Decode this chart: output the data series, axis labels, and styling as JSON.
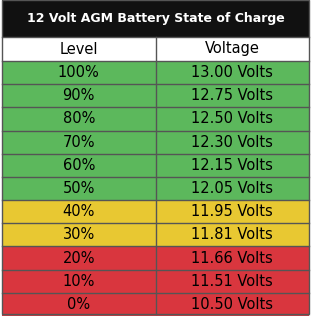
{
  "title": "12 Volt AGM Battery State of Charge",
  "col_headers": [
    "Level",
    "Voltage"
  ],
  "rows": [
    {
      "level": "100%",
      "voltage": "13.00 Volts",
      "color": "#5cb85c"
    },
    {
      "level": "90%",
      "voltage": "12.75 Volts",
      "color": "#5cb85c"
    },
    {
      "level": "80%",
      "voltage": "12.50 Volts",
      "color": "#5cb85c"
    },
    {
      "level": "70%",
      "voltage": "12.30 Volts",
      "color": "#5cb85c"
    },
    {
      "level": "60%",
      "voltage": "12.15 Volts",
      "color": "#5cb85c"
    },
    {
      "level": "50%",
      "voltage": "12.05 Volts",
      "color": "#5cb85c"
    },
    {
      "level": "40%",
      "voltage": "11.95 Volts",
      "color": "#e8c832"
    },
    {
      "level": "30%",
      "voltage": "11.81 Volts",
      "color": "#e8c832"
    },
    {
      "level": "20%",
      "voltage": "11.66 Volts",
      "color": "#d9363e"
    },
    {
      "level": "10%",
      "voltage": "11.51 Volts",
      "color": "#d9363e"
    },
    {
      "level": "0%",
      "voltage": "10.50 Volts",
      "color": "#d9363e"
    }
  ],
  "title_bg": "#111111",
  "title_color": "#ffffff",
  "header_bg": "#ffffff",
  "header_color": "#000000",
  "border_color": "#555555",
  "title_fontsize": 9.0,
  "header_fontsize": 10.5,
  "cell_fontsize": 10.5,
  "fig_width": 3.11,
  "fig_height": 3.16,
  "dpi": 100
}
